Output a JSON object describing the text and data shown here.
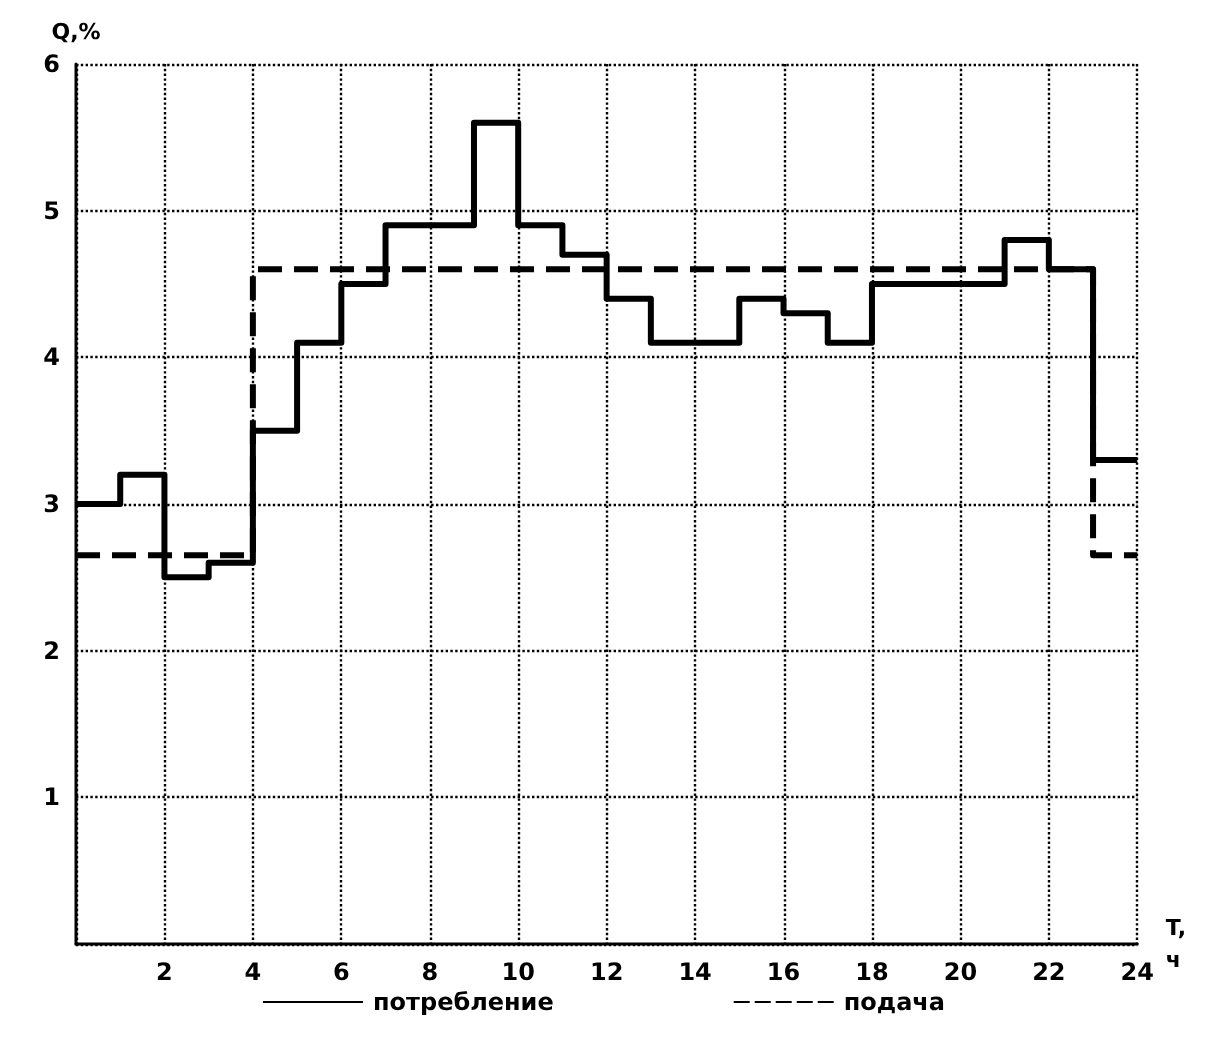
{
  "chart_data": {
    "type": "step",
    "xlabel": "T, ч",
    "ylabel": "Q,%",
    "x": [
      0,
      1,
      2,
      3,
      4,
      5,
      6,
      7,
      8,
      9,
      10,
      11,
      12,
      13,
      14,
      15,
      16,
      17,
      18,
      19,
      20,
      21,
      22,
      23,
      24
    ],
    "series": [
      {
        "name": "потребление",
        "color": "#000000",
        "line_style": "solid",
        "values": [
          3.0,
          3.2,
          2.5,
          2.6,
          3.5,
          4.1,
          4.5,
          4.9,
          4.9,
          5.6,
          4.9,
          4.7,
          4.4,
          4.1,
          4.1,
          4.4,
          4.3,
          4.1,
          4.5,
          4.5,
          4.5,
          4.8,
          4.6,
          3.3,
          3.3
        ]
      },
      {
        "name": "подача",
        "color": "#000000",
        "line_style": "dashed",
        "values": [
          2.65,
          2.65,
          2.65,
          2.65,
          4.6,
          4.6,
          4.6,
          4.6,
          4.6,
          4.6,
          4.6,
          4.6,
          4.6,
          4.6,
          4.6,
          4.6,
          4.6,
          4.6,
          4.6,
          4.6,
          4.6,
          4.6,
          4.6,
          2.65,
          2.65
        ]
      }
    ],
    "xlim": [
      0,
      24
    ],
    "xticks": [
      {
        "value": 0,
        "label": null
      },
      2,
      4,
      6,
      8,
      10,
      12,
      14,
      16,
      18,
      20,
      22,
      24
    ],
    "ylim": [
      0,
      6
    ],
    "yticks": [
      {
        "value": 0,
        "label": null
      },
      1,
      2,
      3,
      4,
      5,
      6
    ],
    "grid": true,
    "legend": "bottom"
  }
}
